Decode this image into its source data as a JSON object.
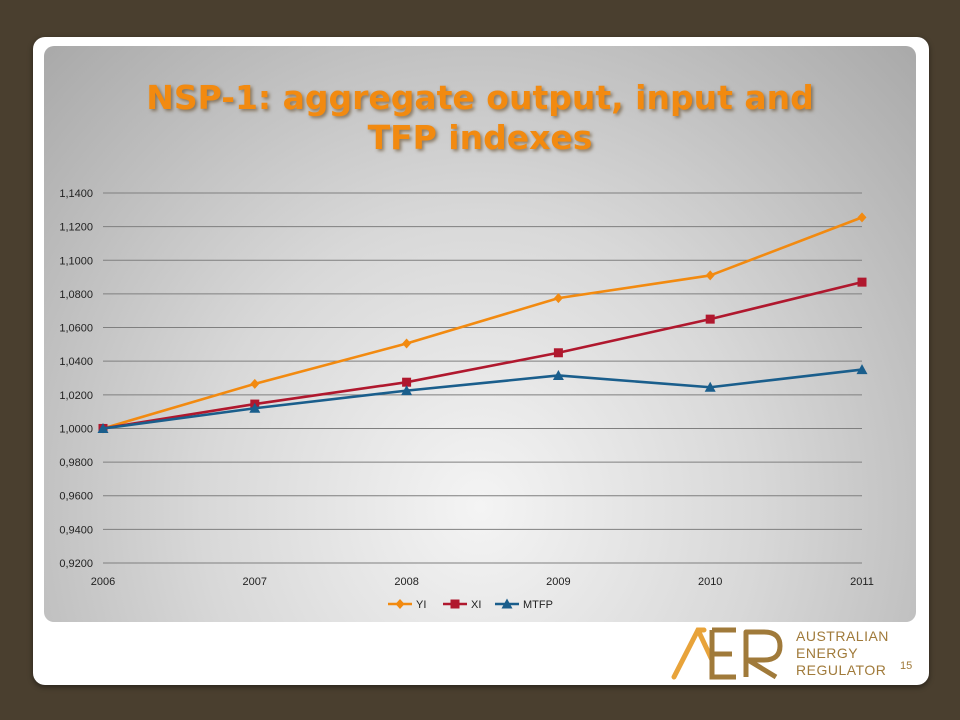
{
  "slide": {
    "title_lines": [
      "NSP-1: aggregate output, input and",
      "TFP indexes"
    ],
    "page_number": "15",
    "logo": {
      "lettering": "AER",
      "text_lines": [
        "AUSTRALIAN",
        "ENERGY",
        "REGULATOR"
      ]
    }
  },
  "chart_data": {
    "type": "line",
    "title": "NSP-1: aggregate output, input and TFP indexes",
    "x": [
      2006,
      2007,
      2008,
      2009,
      2010,
      2011
    ],
    "x_tick_labels": [
      "2006",
      "2007",
      "2008",
      "2009",
      "2010",
      "2011"
    ],
    "ylim": [
      0.92,
      1.14
    ],
    "y_ticks": [
      0.92,
      0.94,
      0.96,
      0.98,
      1.0,
      1.02,
      1.04,
      1.06,
      1.08,
      1.1,
      1.12,
      1.14
    ],
    "y_tick_labels": [
      "0,9200",
      "0,9400",
      "0,9600",
      "0,9800",
      "1,0000",
      "1,0200",
      "1,0400",
      "1,0600",
      "1,0800",
      "1,1000",
      "1,1200",
      "1,1400"
    ],
    "grid": "horizontal",
    "legend_position": "bottom",
    "series": [
      {
        "name": "YI",
        "color": "#f28a10",
        "marker": "diamond",
        "values": [
          1.0,
          1.0265,
          1.0505,
          1.0775,
          1.091,
          1.1255
        ]
      },
      {
        "name": "XI",
        "color": "#b0182e",
        "marker": "square",
        "values": [
          1.0,
          1.0145,
          1.0275,
          1.045,
          1.065,
          1.087
        ]
      },
      {
        "name": "MTFP",
        "color": "#1a5e8c",
        "marker": "triangle",
        "values": [
          1.0,
          1.012,
          1.0225,
          1.0315,
          1.0245,
          1.035
        ]
      }
    ]
  }
}
